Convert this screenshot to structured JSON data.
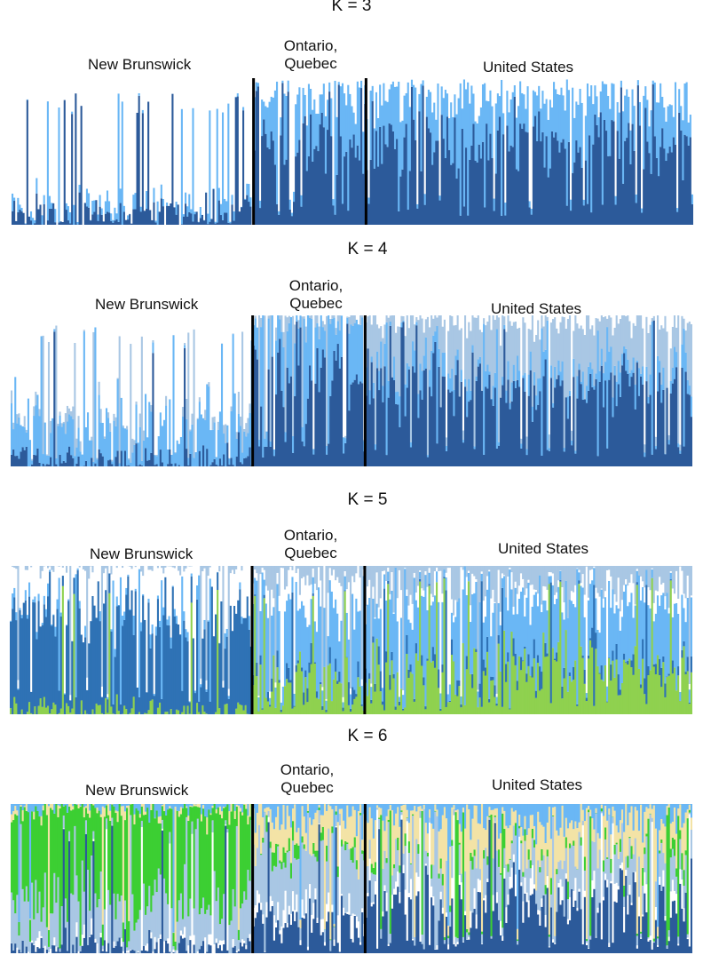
{
  "chart_data": {
    "type": "bar",
    "stacked": true,
    "description_units": "ancestry proportion per individual (0-1)",
    "colors": {
      "white": "#ffffff",
      "light_blue": "#6ab7f5",
      "dark_blue": "#2c5a9a",
      "medium_blue": "#2f72b5",
      "pale_blue": "#a9c7e4",
      "green": "#8fd14f",
      "bright_green": "#3ccf33",
      "beige": "#f3e3a6",
      "teal": "#4aaee0",
      "divider": "#000000"
    },
    "panels": [
      {
        "label": "K = 3",
        "regions": [
          {
            "name": "New Brunswick",
            "individuals": 130
          },
          {
            "name": "Ontario,\nQuebec",
            "individuals": 60
          },
          {
            "name": "United States",
            "individuals": 175
          }
        ],
        "region_composition": [
          [
            0.08,
            0.05,
            0.87
          ],
          [
            0.55,
            0.3,
            0.15
          ],
          [
            0.55,
            0.3,
            0.15
          ]
        ],
        "series": [
          {
            "color": "dark_blue"
          },
          {
            "color": "light_blue"
          },
          {
            "color": "white"
          }
        ]
      },
      {
        "label": "K = 4",
        "regions": [
          {
            "name": "New Brunswick",
            "individuals": 130
          },
          {
            "name": "Ontario,\nQuebec",
            "individuals": 60
          },
          {
            "name": "United States",
            "individuals": 175
          }
        ],
        "region_composition": [
          [
            0.05,
            0.25,
            0.02,
            0.68
          ],
          [
            0.6,
            0.35,
            0.03,
            0.02
          ],
          [
            0.55,
            0.1,
            0.3,
            0.05
          ]
        ],
        "series": [
          {
            "color": "dark_blue"
          },
          {
            "color": "light_blue"
          },
          {
            "color": "pale_blue"
          },
          {
            "color": "white"
          }
        ]
      },
      {
        "label": "K = 5",
        "regions": [
          {
            "name": "New Brunswick",
            "individuals": 130
          },
          {
            "name": "Ontario,\nQuebec",
            "individuals": 60
          },
          {
            "name": "United States",
            "individuals": 175
          }
        ],
        "region_composition": [
          [
            0.02,
            0.65,
            0.03,
            0.3,
            0.0
          ],
          [
            0.2,
            0.05,
            0.45,
            0.2,
            0.1
          ],
          [
            0.3,
            0.05,
            0.4,
            0.1,
            0.15
          ]
        ],
        "series": [
          {
            "color": "green"
          },
          {
            "color": "medium_blue"
          },
          {
            "color": "light_blue"
          },
          {
            "color": "white"
          },
          {
            "color": "pale_blue"
          }
        ]
      },
      {
        "label": "K = 6",
        "regions": [
          {
            "name": "New Brunswick",
            "individuals": 130
          },
          {
            "name": "Ontario,\nQuebec",
            "individuals": 60
          },
          {
            "name": "United States",
            "individuals": 175
          }
        ],
        "region_composition": [
          [
            0.04,
            0.02,
            0.3,
            0.6,
            0.02,
            0.02
          ],
          [
            0.2,
            0.1,
            0.35,
            0.05,
            0.2,
            0.1
          ],
          [
            0.35,
            0.08,
            0.2,
            0.03,
            0.22,
            0.12
          ]
        ],
        "series": [
          {
            "color": "dark_blue"
          },
          {
            "color": "white"
          },
          {
            "color": "pale_blue"
          },
          {
            "color": "bright_green"
          },
          {
            "color": "beige"
          },
          {
            "color": "light_blue"
          }
        ]
      }
    ]
  }
}
